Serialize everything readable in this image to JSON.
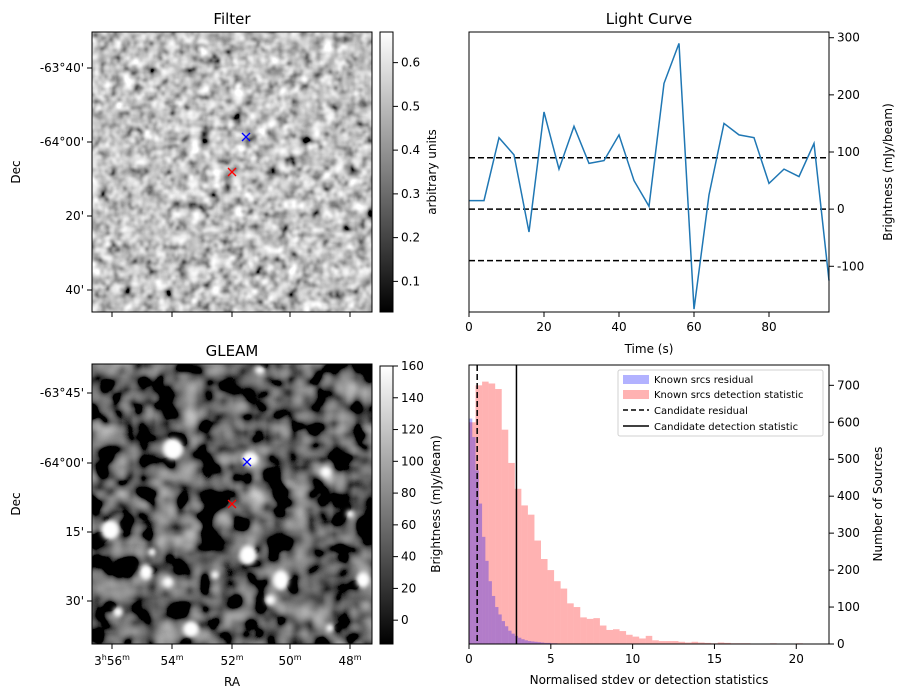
{
  "panels": {
    "filter": {
      "title": "Filter",
      "ylabel": "Dec",
      "yticks": [
        "-63°40'",
        "-64°00'",
        "20'",
        "40'"
      ],
      "colorbar": {
        "label": "arbitrary units",
        "ticks": [
          "0.1",
          "0.2",
          "0.3",
          "0.4",
          "0.5",
          "0.6"
        ],
        "min": 0.03,
        "max": 0.67
      },
      "markers": [
        {
          "color": "#0000ff"
        },
        {
          "color": "#ff0000"
        }
      ]
    },
    "gleam": {
      "title": "GLEAM",
      "ylabel": "Dec",
      "xlabel": "RA",
      "xticks": [
        {
          "h": "3",
          "hsup": "h",
          "m": "56",
          "msup": "m"
        },
        {
          "m": "54",
          "msup": "m"
        },
        {
          "m": "52",
          "msup": "m"
        },
        {
          "m": "50",
          "msup": "m"
        },
        {
          "m": "48",
          "msup": "m"
        }
      ],
      "yticks": [
        "-63°45'",
        "-64°00'",
        "15'",
        "30'"
      ],
      "colorbar": {
        "label": "Brightness (mJy/beam)",
        "ticks": [
          "0",
          "20",
          "40",
          "60",
          "80",
          "100",
          "120",
          "140",
          "160"
        ],
        "min": -15,
        "max": 160
      },
      "markers": [
        {
          "color": "#0000ff"
        },
        {
          "color": "#ff0000"
        }
      ]
    }
  },
  "chart_data": [
    {
      "type": "line",
      "title": "Light Curve",
      "xlabel": "Time (s)",
      "ylabel": "Brightness (mJy/beam)",
      "xlim": [
        0,
        96
      ],
      "ylim": [
        -180,
        310
      ],
      "xticks": [
        0,
        20,
        40,
        60,
        80
      ],
      "yticks": [
        -100,
        0,
        100,
        200,
        300
      ],
      "color": "#1f77b4",
      "series": [
        {
          "x": [
            0,
            4,
            8,
            12,
            16,
            20,
            24,
            28,
            32,
            36,
            40,
            44,
            48,
            52,
            56,
            60,
            64,
            68,
            72,
            76,
            80,
            84,
            88,
            92,
            96
          ],
          "values": [
            15,
            15,
            125,
            95,
            -40,
            170,
            70,
            145,
            80,
            85,
            130,
            50,
            5,
            220,
            290,
            -175,
            25,
            150,
            130,
            125,
            45,
            70,
            57,
            115,
            -125
          ]
        }
      ],
      "hlines": [
        {
          "y": 90,
          "style": "dashed"
        },
        {
          "y": 0,
          "style": "dashed"
        },
        {
          "y": -90,
          "style": "dashed"
        }
      ]
    },
    {
      "type": "bar",
      "xlabel": "Normalised stdev or detection statistics",
      "ylabel": "Number of Sources",
      "xlim": [
        0,
        22
      ],
      "ylim": [
        0,
        755
      ],
      "xticks": [
        0,
        5,
        10,
        15,
        20
      ],
      "yticks": [
        0,
        100,
        200,
        300,
        400,
        500,
        600,
        700
      ],
      "legend_position": "top-right",
      "series": [
        {
          "name": "Known srcs residual",
          "color": "#0000ff",
          "opacity": 0.3,
          "bin_width": 0.2,
          "bin_starts": [
            0,
            0.2,
            0.4,
            0.6,
            0.8,
            1.0,
            1.2,
            1.4,
            1.6,
            1.8,
            2.0,
            2.2,
            2.4,
            2.6,
            2.8,
            3.0,
            3.2,
            3.4,
            3.6,
            3.8,
            4.0,
            4.2,
            4.4,
            4.6,
            4.8,
            5.0,
            5.2,
            5.4,
            5.6,
            5.8
          ],
          "values": [
            610,
            560,
            470,
            380,
            290,
            225,
            170,
            130,
            100,
            80,
            62,
            48,
            36,
            28,
            22,
            17,
            13,
            10,
            8,
            7,
            6,
            5,
            4,
            3,
            3,
            2,
            2,
            1,
            1,
            1
          ]
        },
        {
          "name": "Known srcs detection statistic",
          "color": "#ff0000",
          "opacity": 0.3,
          "bin_width": 0.4,
          "bin_starts": [
            0,
            0.4,
            0.8,
            1.2,
            1.6,
            2.0,
            2.4,
            2.8,
            3.2,
            3.6,
            4.0,
            4.4,
            4.8,
            5.2,
            5.6,
            6.0,
            6.4,
            6.8,
            7.2,
            7.6,
            8.0,
            8.4,
            8.8,
            9.2,
            9.6,
            10.0,
            10.4,
            10.8,
            11.2,
            11.6,
            12.0,
            12.4,
            12.8,
            13.2,
            13.6,
            14.0,
            14.4,
            14.8,
            15.2,
            15.6,
            16.0,
            16.4,
            16.8,
            17.2,
            17.6,
            18.0,
            18.4,
            18.8,
            19.2,
            19.6,
            20.0,
            20.4,
            20.8,
            21.2,
            21.6
          ],
          "values": [
            600,
            700,
            710,
            705,
            690,
            580,
            490,
            420,
            375,
            350,
            280,
            230,
            200,
            170,
            150,
            110,
            100,
            72,
            68,
            70,
            50,
            38,
            40,
            35,
            25,
            20,
            15,
            22,
            10,
            8,
            8,
            8,
            6,
            4,
            6,
            4,
            3,
            2,
            4,
            3,
            2,
            2,
            2,
            1,
            1,
            1,
            2,
            1,
            1,
            1,
            2,
            1,
            1,
            1,
            1
          ]
        }
      ],
      "vlines": [
        {
          "name": "Candidate residual",
          "x": 0.5,
          "style": "dashed"
        },
        {
          "name": "Candidate detection statistic",
          "x": 2.9,
          "style": "solid"
        }
      ]
    }
  ]
}
